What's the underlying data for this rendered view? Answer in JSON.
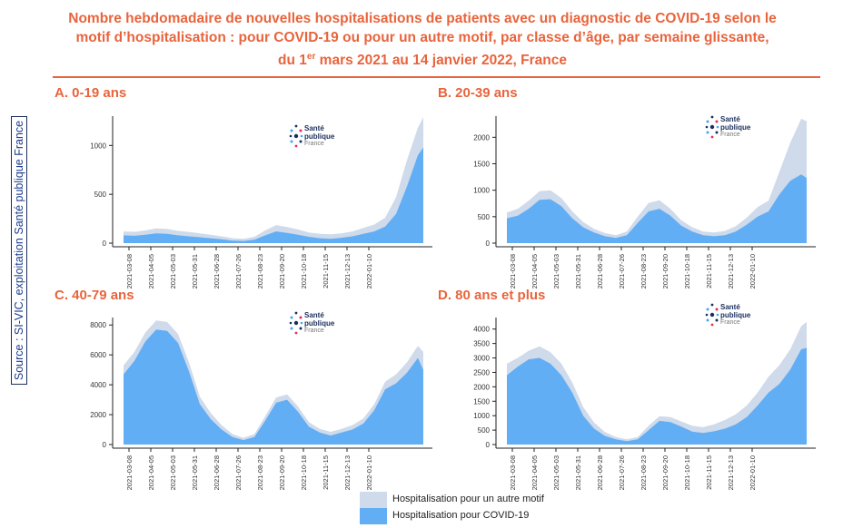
{
  "title": {
    "line1": "Nombre hebdomadaire de nouvelles hospitalisations de patients avec un diagnostic de COVID-19 selon le",
    "line2": "motif d’hospitalisation : pour COVID-19 ou pour un autre motif, par classe d’âge, par semaine glissante,",
    "line3_pre": "du 1",
    "line3_sup": "er",
    "line3_post": " mars 2021 au 14 janvier 2022, France"
  },
  "source": "Source : SI-VIC, exploitation Santé publique France",
  "logo": {
    "line1": "Santé",
    "line2": "publique",
    "line3": "France"
  },
  "legend": {
    "other": "Hospitalisation pour un autre motif",
    "covid": "Hospitalisation pour COVID-19"
  },
  "colors": {
    "covid": "#62aef5",
    "other": "#cfdaea",
    "title": "#e8643c",
    "axis": "#222222"
  },
  "chart_data": [
    {
      "type": "area",
      "title": "A. 0-19 ans",
      "ylim": [
        0,
        1300
      ],
      "yticks": [
        0,
        500,
        1000
      ],
      "xticks": [
        "2021-03-08",
        "2021-04-05",
        "2021-05-03",
        "2021-05-31",
        "2021-06-28",
        "2021-07-26",
        "2021-08-23",
        "2021-09-20",
        "2021-10-18",
        "2021-11-15",
        "2021-12-13",
        "2022-01-10"
      ],
      "x": [
        0,
        2,
        4,
        6,
        8,
        10,
        12,
        14,
        16,
        18,
        20,
        22,
        24,
        26,
        28,
        30,
        32,
        34,
        36,
        38,
        40,
        42,
        44,
        46,
        48,
        50,
        52,
        54,
        55
      ],
      "series": [
        {
          "name": "Hospitalisation pour COVID-19",
          "values": [
            80,
            75,
            85,
            100,
            95,
            80,
            70,
            60,
            50,
            40,
            25,
            22,
            35,
            80,
            120,
            105,
            85,
            65,
            50,
            45,
            55,
            70,
            95,
            120,
            170,
            300,
            580,
            900,
            980
          ]
        },
        {
          "name": "Hospitalisation pour un autre motif",
          "values": [
            120,
            115,
            130,
            150,
            145,
            125,
            115,
            100,
            85,
            70,
            50,
            45,
            65,
            130,
            185,
            165,
            140,
            110,
            95,
            90,
            100,
            120,
            155,
            190,
            260,
            470,
            850,
            1180,
            1290
          ]
        }
      ]
    },
    {
      "type": "area",
      "title": "B. 20-39 ans",
      "ylim": [
        0,
        2400
      ],
      "yticks": [
        0,
        500,
        1000,
        1500,
        2000
      ],
      "xticks": [
        "2021-03-08",
        "2021-04-05",
        "2021-05-03",
        "2021-05-31",
        "2021-06-28",
        "2021-07-26",
        "2021-08-23",
        "2021-09-20",
        "2021-10-18",
        "2021-11-15",
        "2021-12-13",
        "2022-01-10"
      ],
      "x": [
        0,
        2,
        4,
        6,
        8,
        10,
        12,
        14,
        16,
        18,
        20,
        22,
        24,
        26,
        28,
        30,
        32,
        34,
        36,
        38,
        40,
        42,
        44,
        46,
        48,
        50,
        52,
        54,
        55
      ],
      "series": [
        {
          "name": "Hospitalisation pour COVID-19",
          "values": [
            470,
            520,
            650,
            820,
            830,
            700,
            470,
            300,
            200,
            130,
            100,
            150,
            380,
            600,
            650,
            520,
            330,
            220,
            150,
            130,
            150,
            220,
            350,
            500,
            600,
            920,
            1180,
            1300,
            1230
          ]
        },
        {
          "name": "Hospitalisation pour un autre motif",
          "values": [
            580,
            650,
            800,
            980,
            1000,
            850,
            600,
            400,
            270,
            190,
            150,
            220,
            500,
            760,
            810,
            650,
            430,
            300,
            220,
            200,
            230,
            320,
            480,
            680,
            800,
            1350,
            1900,
            2350,
            2300
          ]
        }
      ]
    },
    {
      "type": "area",
      "title": "C. 40-79 ans",
      "ylim": [
        0,
        8500
      ],
      "yticks": [
        0,
        2000,
        4000,
        6000,
        8000
      ],
      "xticks": [
        "2021-03-08",
        "2021-04-05",
        "2021-05-03",
        "2021-05-31",
        "2021-06-28",
        "2021-07-26",
        "2021-08-23",
        "2021-09-20",
        "2021-10-18",
        "2021-11-15",
        "2021-12-13",
        "2022-01-10"
      ],
      "x": [
        0,
        2,
        4,
        6,
        8,
        10,
        12,
        14,
        16,
        18,
        20,
        22,
        24,
        26,
        28,
        30,
        32,
        34,
        36,
        38,
        40,
        42,
        44,
        46,
        48,
        50,
        52,
        54,
        55
      ],
      "series": [
        {
          "name": "Hospitalisation pour COVID-19",
          "values": [
            4700,
            5600,
            6900,
            7700,
            7600,
            6800,
            4900,
            2700,
            1700,
            1000,
            500,
            300,
            500,
            1600,
            2800,
            3000,
            2200,
            1200,
            800,
            600,
            800,
            1000,
            1400,
            2300,
            3700,
            4100,
            4800,
            5800,
            5000
          ]
        },
        {
          "name": "Hospitalisation pour un autre motif",
          "values": [
            5300,
            6200,
            7500,
            8300,
            8200,
            7400,
            5500,
            3200,
            2100,
            1300,
            700,
            450,
            700,
            1900,
            3150,
            3350,
            2550,
            1500,
            1050,
            850,
            1050,
            1300,
            1750,
            2700,
            4200,
            4700,
            5500,
            6600,
            6200
          ]
        }
      ]
    },
    {
      "type": "area",
      "title": "D. 80 ans et plus",
      "ylim": [
        0,
        4400
      ],
      "yticks": [
        0,
        500,
        1000,
        1500,
        2000,
        2500,
        3000,
        3500,
        4000
      ],
      "xticks": [
        "2021-03-08",
        "2021-04-05",
        "2021-05-03",
        "2021-05-31",
        "2021-06-28",
        "2021-07-26",
        "2021-08-23",
        "2021-09-20",
        "2021-10-18",
        "2021-11-15",
        "2021-12-13",
        "2022-01-10"
      ],
      "x": [
        0,
        2,
        4,
        6,
        8,
        10,
        12,
        14,
        16,
        18,
        20,
        22,
        24,
        26,
        28,
        30,
        32,
        34,
        36,
        38,
        40,
        42,
        44,
        46,
        48,
        50,
        52,
        54,
        55
      ],
      "series": [
        {
          "name": "Hospitalisation pour COVID-19",
          "values": [
            2400,
            2700,
            2950,
            3000,
            2800,
            2400,
            1800,
            1000,
            550,
            300,
            180,
            120,
            180,
            500,
            820,
            780,
            620,
            450,
            400,
            460,
            550,
            700,
            950,
            1350,
            1800,
            2100,
            2600,
            3300,
            3350
          ]
        },
        {
          "name": "Hospitalisation pour un autre motif",
          "values": [
            2800,
            3000,
            3250,
            3400,
            3200,
            2800,
            2150,
            1300,
            760,
            430,
            260,
            180,
            260,
            650,
            980,
            950,
            800,
            650,
            600,
            700,
            850,
            1050,
            1350,
            1800,
            2350,
            2750,
            3300,
            4100,
            4250
          ]
        }
      ]
    }
  ]
}
